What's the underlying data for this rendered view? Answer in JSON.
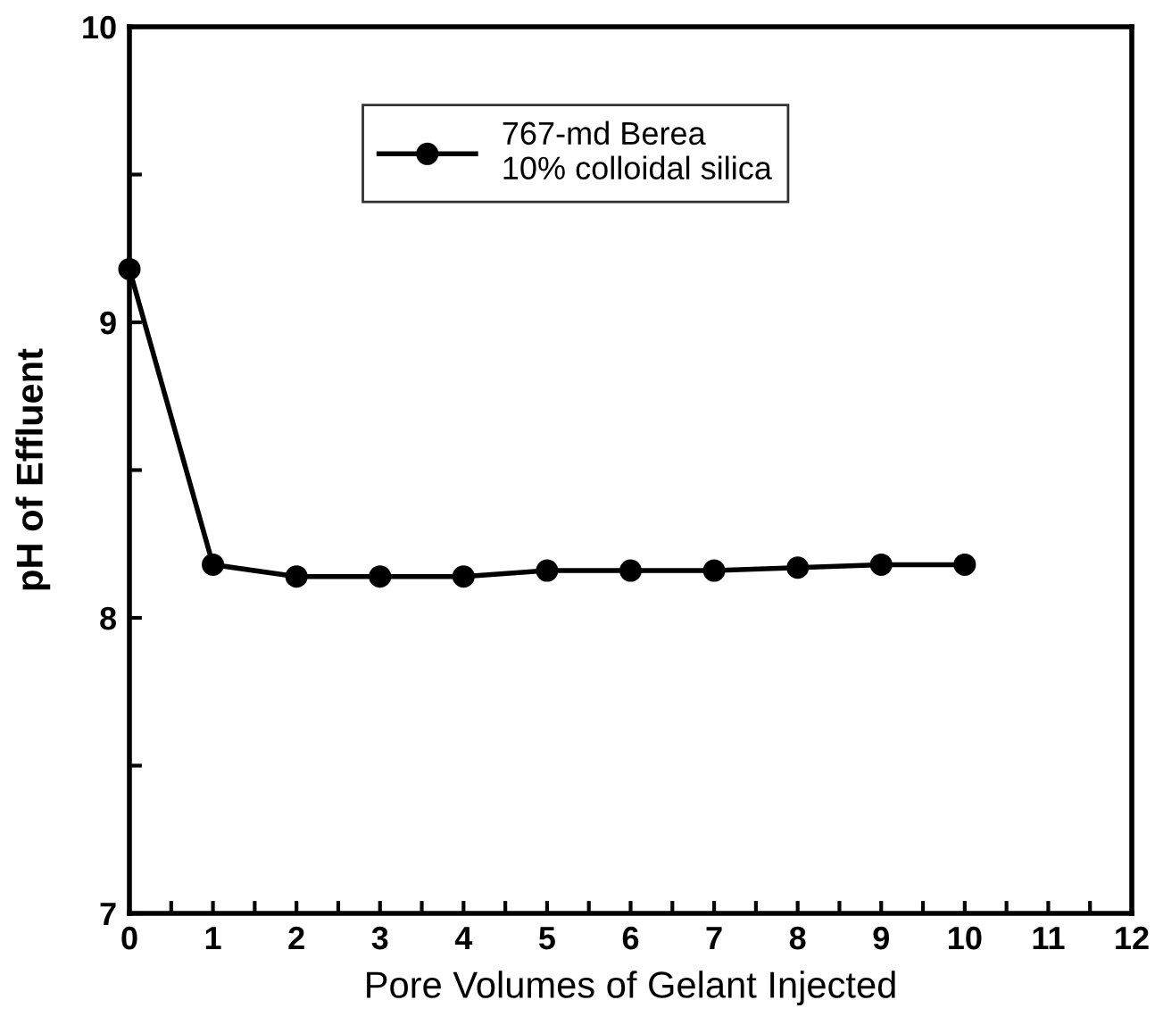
{
  "chart_data": {
    "type": "line",
    "xlabel": "Pore Volumes of Gelant Injected",
    "ylabel": "pH of Effluent",
    "x": [
      0,
      1,
      2,
      3,
      4,
      5,
      6,
      7,
      8,
      9,
      10
    ],
    "series": [
      {
        "name": "767-md Berea\n10% colloidal silica",
        "color": "#000000",
        "values": [
          9.18,
          8.18,
          8.14,
          8.14,
          8.14,
          8.16,
          8.16,
          8.16,
          8.17,
          8.18,
          8.18
        ]
      }
    ],
    "xlim": [
      0,
      12
    ],
    "ylim": [
      7,
      10
    ],
    "xticks": [
      0,
      {
        "value": 0.5,
        "label": null
      },
      1,
      {
        "value": 1.5,
        "label": null
      },
      2,
      {
        "value": 2.5,
        "label": null
      },
      3,
      {
        "value": 3.5,
        "label": null
      },
      4,
      {
        "value": 4.5,
        "label": null
      },
      5,
      {
        "value": 5.5,
        "label": null
      },
      6,
      {
        "value": 6.5,
        "label": null
      },
      7,
      {
        "value": 7.5,
        "label": null
      },
      8,
      {
        "value": 8.5,
        "label": null
      },
      9,
      {
        "value": 9.5,
        "label": null
      },
      10,
      {
        "value": 10.5,
        "label": null
      },
      11,
      {
        "value": 11.5,
        "label": null
      },
      12
    ],
    "yticks": [
      7,
      {
        "value": 7.5,
        "label": null
      },
      8,
      {
        "value": 8.5,
        "label": null
      },
      9,
      {
        "value": 9.5,
        "label": null
      },
      10
    ],
    "marker": "circle",
    "line_style": "solid",
    "grid": false,
    "legend": "top"
  }
}
